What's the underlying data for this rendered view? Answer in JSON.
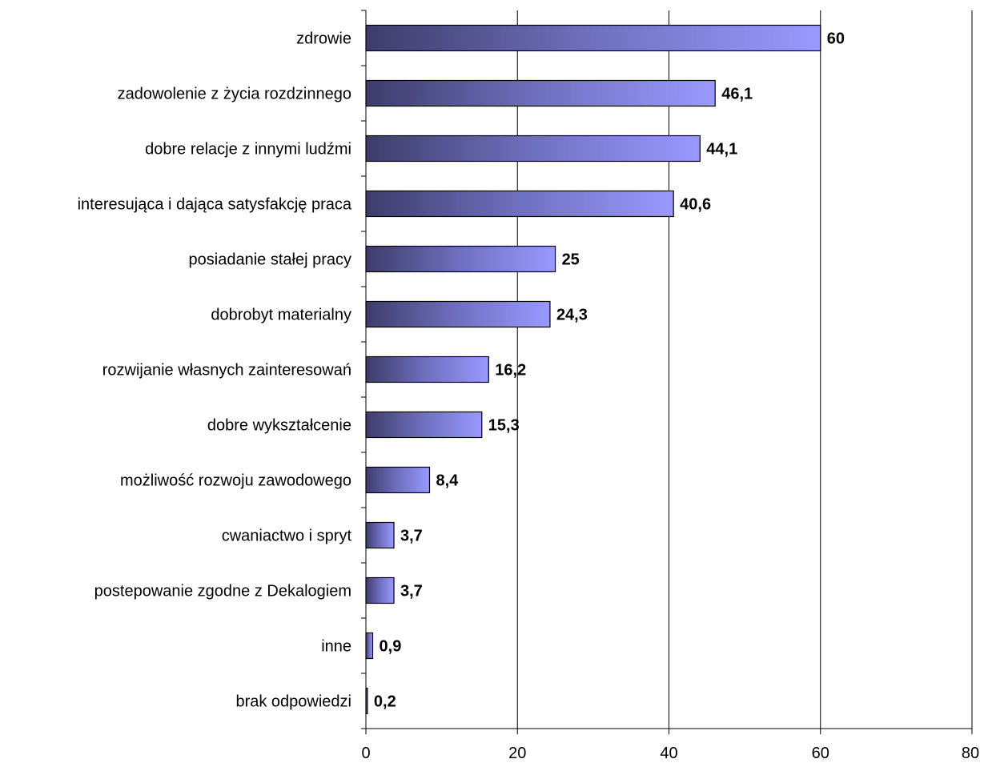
{
  "chart_data": {
    "type": "bar",
    "orientation": "horizontal",
    "categories": [
      "zdrowie",
      "zadowolenie z życia rozdzinnego",
      "dobre relacje z innymi ludźmi",
      "interesująca i dająca satysfakcję praca",
      "posiadanie stałej pracy",
      "dobrobyt materialny",
      "rozwijanie własnych zainteresowań",
      "dobre wykształcenie",
      "możliwość rozwoju zawodowego",
      "cwaniactwo i spryt",
      "postepowanie zgodne z Dekalogiem",
      "inne",
      "brak odpowiedzi"
    ],
    "values": [
      60,
      46.1,
      44.1,
      40.6,
      25,
      24.3,
      16.2,
      15.3,
      8.4,
      3.7,
      3.7,
      0.9,
      0.2
    ],
    "value_labels": [
      "60",
      "46,1",
      "44,1",
      "40,6",
      "25",
      "24,3",
      "16,2",
      "15,3",
      "8,4",
      "3,7",
      "3,7",
      "0,9",
      "0,2"
    ],
    "xlim": [
      0,
      80
    ],
    "x_ticks": [
      0,
      20,
      40,
      60,
      80
    ],
    "x_tick_labels": [
      "0",
      "20",
      "40",
      "60",
      "80"
    ],
    "grid": "vertical",
    "title": "",
    "xlabel": "",
    "ylabel": "",
    "colors": {
      "bar_gradient_start": "#3d3d6b",
      "bar_gradient_mid": "#7070c0",
      "bar_gradient_end": "#9999ff",
      "bar_border": "#000000",
      "grid": "#000000",
      "axis": "#000000"
    }
  }
}
